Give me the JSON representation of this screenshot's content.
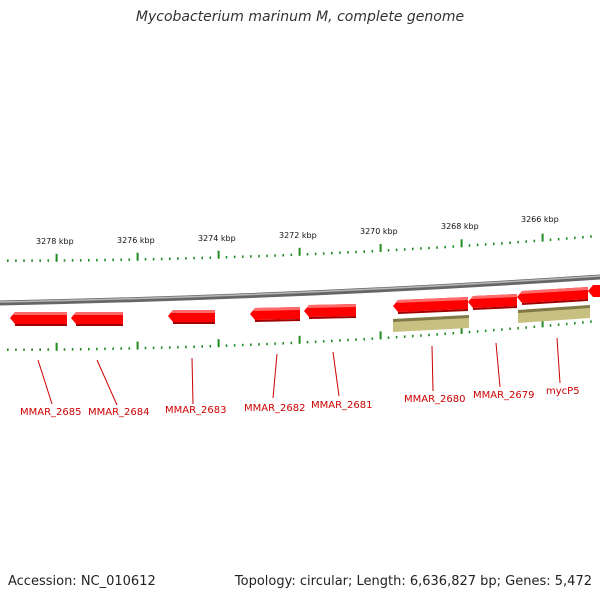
{
  "title": "Mycobacterium marinum M, complete genome",
  "footer": {
    "accession": "Accession: NC_010612",
    "summary": "Topology: circular; Length: 6,636,827 bp; Genes: 5,472"
  },
  "colors": {
    "backbone": "#808080",
    "gene": "#ff0000",
    "gene_dark": "#b40000",
    "cds": "#c8c080",
    "cds_dark": "#8a8450",
    "tick": "#228b22",
    "label": "#cc0000"
  },
  "scale_labels": [
    "3278 kbp",
    "3276 kbp",
    "3274 kbp",
    "3272 kbp",
    "3270 kbp",
    "3268 kbp",
    "3266 kbp"
  ],
  "genes": [
    {
      "id": "g2685",
      "label": "MMAR_2685"
    },
    {
      "id": "g2684",
      "label": "MMAR_2684"
    },
    {
      "id": "g2683",
      "label": "MMAR_2683"
    },
    {
      "id": "g2682",
      "label": "MMAR_2682"
    },
    {
      "id": "g2681",
      "label": "MMAR_2681"
    },
    {
      "id": "g2680",
      "label": "MMAR_2680"
    },
    {
      "id": "g2679",
      "label": "MMAR_2679"
    },
    {
      "id": "gmycp5",
      "label": "mycP5"
    }
  ]
}
